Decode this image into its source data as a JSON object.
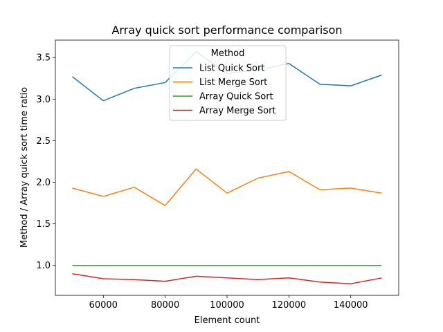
{
  "chart_data": {
    "type": "line",
    "title": "Array quick sort performance comparison",
    "xlabel": "Element count",
    "ylabel": "Method / Array quick sort time ratio",
    "x": [
      50000,
      60000,
      70000,
      80000,
      90000,
      100000,
      110000,
      120000,
      130000,
      140000,
      150000
    ],
    "xlim": [
      44500,
      155500
    ],
    "ylim": [
      0.64,
      3.71
    ],
    "xticks": [
      60000,
      80000,
      100000,
      120000,
      140000
    ],
    "yticks": [
      1.0,
      1.5,
      2.0,
      2.5,
      3.0,
      3.5
    ],
    "xtick_labels": [
      "60000",
      "80000",
      "100000",
      "120000",
      "140000"
    ],
    "ytick_labels": [
      "1.0",
      "1.5",
      "2.0",
      "2.5",
      "3.0",
      "3.5"
    ],
    "grid": false,
    "legend": {
      "title": "Method",
      "placement": "upper-center"
    },
    "series": [
      {
        "name": "List Quick Sort",
        "color": "#1f77b4",
        "values": [
          3.27,
          2.98,
          3.13,
          3.2,
          3.57,
          3.31,
          3.35,
          3.43,
          3.18,
          3.16,
          3.29
        ]
      },
      {
        "name": "List Merge Sort",
        "color": "#ff7f0e",
        "values": [
          1.93,
          1.83,
          1.94,
          1.72,
          2.16,
          1.87,
          2.05,
          2.13,
          1.91,
          1.93,
          1.87
        ]
      },
      {
        "name": "Array Quick Sort",
        "color": "#2ca02c",
        "values": [
          1.0,
          1.0,
          1.0,
          1.0,
          1.0,
          1.0,
          1.0,
          1.0,
          1.0,
          1.0,
          1.0
        ]
      },
      {
        "name": "Array Merge Sort",
        "color": "#d62728",
        "values": [
          0.9,
          0.84,
          0.83,
          0.81,
          0.87,
          0.85,
          0.83,
          0.85,
          0.8,
          0.78,
          0.85
        ]
      }
    ]
  }
}
